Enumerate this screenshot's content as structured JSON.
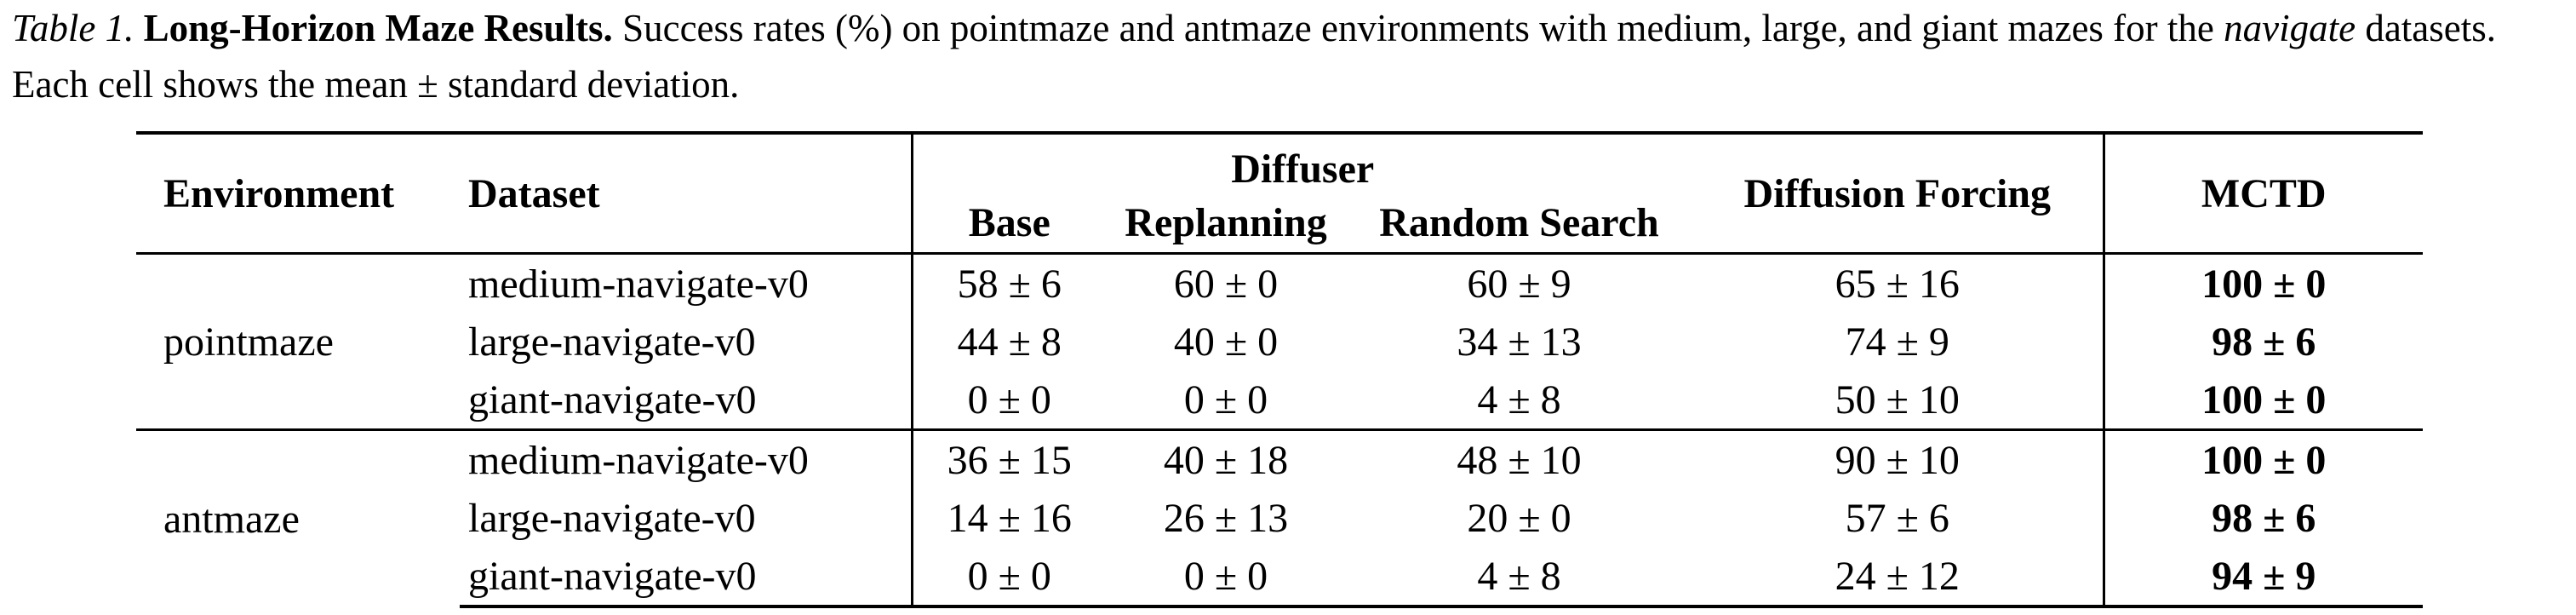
{
  "caption": {
    "label": "Table 1.",
    "title": "Long-Horizon Maze Results.",
    "text_1": " Success rates (%) on pointmaze and antmaze environments with medium, large, and giant mazes for the ",
    "text_em": "navigate",
    "text_2": " datasets. Each cell shows the mean ± standard deviation."
  },
  "table": {
    "headers": {
      "environment": "Environment",
      "dataset": "Dataset",
      "diffuser_group": "Diffuser",
      "base": "Base",
      "replanning": "Replanning",
      "random_search": "Random Search",
      "diffusion_forcing": "Diffusion Forcing",
      "mctd": "MCTD"
    },
    "groups": [
      {
        "environment": "pointmaze",
        "rows": [
          {
            "dataset": "medium-navigate-v0",
            "base": "58 ± 6",
            "replanning": "60 ± 0",
            "random_search": "60 ± 9",
            "diffusion_forcing": "65 ± 16",
            "mctd": "100 ± 0"
          },
          {
            "dataset": "large-navigate-v0",
            "base": "44 ± 8",
            "replanning": "40 ± 0",
            "random_search": "34 ± 13",
            "diffusion_forcing": "74 ± 9",
            "mctd": "98 ± 6"
          },
          {
            "dataset": "giant-navigate-v0",
            "base": "0 ± 0",
            "replanning": "0 ± 0",
            "random_search": "4 ± 8",
            "diffusion_forcing": "50 ± 10",
            "mctd": "100 ± 0"
          }
        ]
      },
      {
        "environment": "antmaze",
        "rows": [
          {
            "dataset": "medium-navigate-v0",
            "base": "36 ± 15",
            "replanning": "40 ± 18",
            "random_search": "48 ± 10",
            "diffusion_forcing": "90 ± 10",
            "mctd": "100 ± 0"
          },
          {
            "dataset": "large-navigate-v0",
            "base": "14 ± 16",
            "replanning": "26 ± 13",
            "random_search": "20 ± 0",
            "diffusion_forcing": "57 ± 6",
            "mctd": "98 ± 6"
          },
          {
            "dataset": "giant-navigate-v0",
            "base": "0 ± 0",
            "replanning": "0 ± 0",
            "random_search": "4 ± 8",
            "diffusion_forcing": "24 ± 12",
            "mctd": "94 ± 9"
          }
        ]
      }
    ]
  }
}
